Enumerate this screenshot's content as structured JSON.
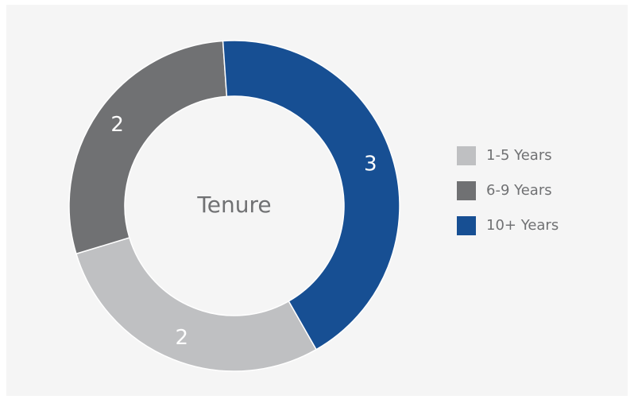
{
  "chart_data": {
    "type": "pie",
    "title": "Tenure",
    "categories": [
      "1-5 Years",
      "6-9 Years",
      "10+ Years"
    ],
    "values": [
      2,
      2,
      3
    ],
    "colors": [
      "#bfc0c2",
      "#707173",
      "#174f93"
    ],
    "legend": "right"
  }
}
